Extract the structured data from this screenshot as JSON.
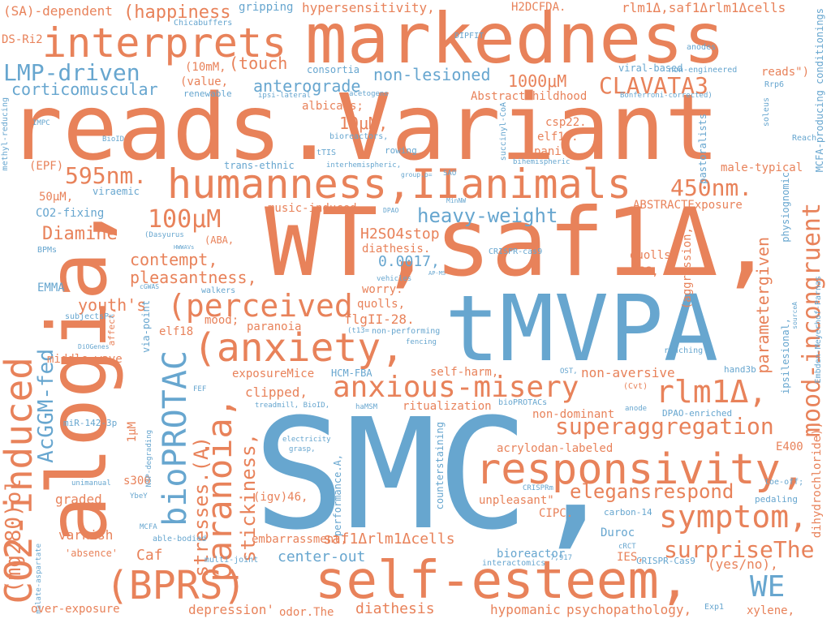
{
  "palette": {
    "orange": "#e8825a",
    "blue": "#67a6cf",
    "background": "#ffffff"
  },
  "words": {
    "smc": "SMC,",
    "wt_saf": "WT,saf1Δ,",
    "reads_variant": "reads.Variant",
    "markedness": "markedness",
    "tmvpa": "tMVPA",
    "alogia": "alogia,",
    "self_esteem": "self-esteem,",
    "interprets": "interprets",
    "humanness": "humanness,IIanimals",
    "anxiety": "(anxiety,",
    "responsivity": "responsivity,",
    "bprs": "(BPRS)",
    "co2_induced": "CO2-induced",
    "symptom": "symptom,",
    "anxious_misery": "anxious-misery",
    "rlm1": "rlm1Δ,",
    "perceived": "(perceived",
    "bioprotac": "bioPROTAC",
    "paranoia": "paranoia,",
    "mood_incongruent": "mood-incongruent",
    "parametergiven": "parametergiven",
    "superaggregation": "superaggregation",
    "elegansrespond": "elegansrespond",
    "surprisethe": "surpriseThe",
    "we": "WE",
    "acggm_fed": "AcGGM-fed",
    "mg280": "(mg280)ol",
    "stresses": "stresses.(A)",
    "stickiness": "stickiness,",
    "clavata3": "CLAVATA3",
    "nm450": "450nm.",
    "nm595": "595nm.",
    "um100": "100μM",
    "lmp_driven": "LMP-driven",
    "corticomuscular": "corticomuscular",
    "anterograde": "anterograde",
    "heavy_weight": "heavy-weight",
    "diamine": "Diamine",
    "contempt": "contempt,",
    "pleasantness": "pleasantness,",
    "youths": "youth's",
    "happiness": "(happiness",
    "touch": "(touch",
    "non_lesioned": "non-lesioned",
    "um1000": "1000μM",
    "um10": "10μM,",
    "hypersensitivity": "hypersensitivity,",
    "h2dcfda": "H2DCFDA.",
    "rlm1_saf": "rlm1Δ,saf1Δrlm1Δcells",
    "sa_dependent": "(SA)-dependent",
    "gripping": "gripping",
    "abstractchildhood": "AbstractChildhood",
    "h2so4stop": "H2SO4stop",
    "num_0017": "0.0017,",
    "diathesis_dot": "diathesis.",
    "flgii": "flgII-28.",
    "quolls_lower": "quolls,",
    "quolls2": "quolls",
    "pss": "PSS,",
    "worry": "worry.",
    "clipped": "clipped,",
    "exposuremice": "exposureMice",
    "hcm_fba": "HCM-FBA",
    "non_aversive": "non-aversive",
    "self_harm": "self-harm,",
    "ritualization": "ritualization",
    "non_dominant": "non-dominant",
    "acrylodan": "acrylodan-labeled",
    "saf_rlm_cells": "saf1Δrlm1Δcells",
    "center_out": "center-out",
    "diathesis": "diathesis",
    "hypomanic": "hypomanic",
    "psychopathology": "psychopathology,",
    "depression": "depression'",
    "odor_the": "odor.The",
    "xylene": "xylene,",
    "yes_no": "(yes/no),",
    "ies": "IES,",
    "bioreactor": "bioreactor",
    "duroc": "Duroc",
    "cipc": "CIPC.",
    "unpleasant": "unpleasant\"",
    "embarrassment": "embarrassment,",
    "caf": "Caf",
    "graded": "graded",
    "varnish": "varnish",
    "s300": "s300",
    "um1": "1μM",
    "middle_wave": "middle-wave",
    "elf18": "elf18",
    "elf18_dot": "elf18.",
    "mood": "mood;",
    "paranoia_small": "paranoia",
    "emma": "EMMA",
    "co2_fixing": "CO2-fixing",
    "um50": "50μM,",
    "epf": "(EPF)",
    "viraemic": "viraemic",
    "trans_ethnic": "trans-ethnic",
    "music_induced": "music-induced",
    "abstractexposure": "ABSTRACTExposure",
    "male_typical": "male-typical",
    "csp22": "csp22.",
    "panic": "panic.",
    "albicans": "albicans;",
    "consortia": "consortia",
    "value": "(value,",
    "mm10": "(10mM,",
    "renewable": "renewable",
    "ds_ri2": "DS-Ri2",
    "chicabuffers": "Chicabuffers",
    "viral_based": "viral-based",
    "reads_quote": "reads\")",
    "non_engineered": "non-engineered",
    "anodes": "anodes",
    "dipfit": "DIPFIT",
    "bonferroni": "Bonferroni-corrected)",
    "rrp6": "Rrp6",
    "soleus": "soleus",
    "reach": "Reach",
    "pastoralists": "pastoralists",
    "mcfa_producing": "MCFA-producing conditionings",
    "physiognomic": "physiognomic",
    "aggression": "(aggression,",
    "ipsilesional": "ipsilesional,",
    "embden": "Embden-Meyerhof-Parnas",
    "sourcea": "sourceA",
    "hand3b": "hand3b",
    "ranching": "ranching",
    "dpao_enriched": "DPAO-enriched",
    "e400": "E400",
    "dihydrochloride": "dihydrochloride),",
    "toe_off": "toe-off;",
    "pedaling": "pedaling",
    "carbon14": "carbon-14",
    "crcpr_cas9": "CRISPR-Cas9",
    "crcpr_cas9_2": "CRISPR-cas9",
    "crisprm": "CRISPRm",
    "crct": "cRCT",
    "exp1": "Exp1",
    "interactomics": "interactomics",
    "n7917": "7,917",
    "biobioprotacs": "bioPROTACs",
    "anode": "anode",
    "cvt": "(Cvt)",
    "ost": "OST,",
    "hamsm": "haMSM",
    "treadmill": "treadmill, BioID,",
    "electricity": "electricity",
    "grasp": "grasp,",
    "performance": "performance.A,",
    "counterstaining": "counterstaining",
    "igv46": "(igv)46,",
    "multi_joint": "multi-joint",
    "able_bodied": "able-bodied",
    "mcfa": "MCFA",
    "malate": "malate-aspartate",
    "absence": "'absence'",
    "over_exposure": "over-exposure",
    "unimanual": "unimanual",
    "mir142": "miR-142-3p",
    "nsp_degrading": "NSP-degrading",
    "fef": "FEF",
    "yoey": "YbeY",
    "diogenes": "DiOGenes",
    "fencing": "fencing",
    "non_performing": "non-performing",
    "t13": "(t13=",
    "via_point": "via-point",
    "affect": "affect,",
    "cgwas": "cGWAS",
    "walkers": "walkers",
    "vehicles": "vehicles",
    "ap_ms": "AP-MS",
    "dasyurus": "(Dasyurus",
    "aba": "(ABA,",
    "hwwavs": "HWWAVs",
    "bpms": "BPMs",
    "subjectsp": "subjectsP<",
    "dpao": "DPAO",
    "minnw": "MinNW",
    "group_p": "group.p=",
    "sao": "SAO",
    "interhemispheric": "interhemispheric,",
    "bihemispheric": "bihemispheric",
    "rowing": "rowing",
    "ttis": "tTIS",
    "bioreactors": "bioreactors,",
    "succinyl": "succinyl-CoA",
    "acetogens": "acetogens",
    "ipsi_lateral": "ipsi-lateral",
    "impc": "IMPC",
    "bioid": "BioID",
    "methyl_reducing": "methyl-reducing"
  }
}
